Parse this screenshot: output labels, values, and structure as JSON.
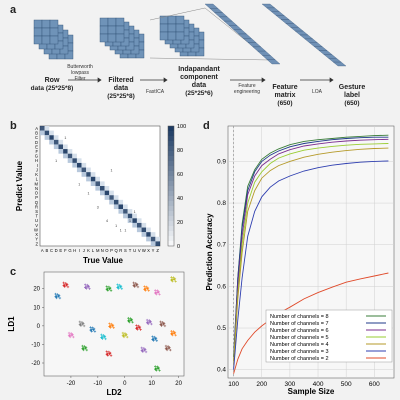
{
  "panels": {
    "a": "a",
    "b": "b",
    "c": "c",
    "d": "d"
  },
  "diagram": {
    "nodes": [
      {
        "label": "Row",
        "sub": "data (25*25*8)"
      },
      {
        "label": "Filtered",
        "label2": "data",
        "sub": "(25*25*8)"
      },
      {
        "label": "Indapandant",
        "label2": "component",
        "label3": "data",
        "sub": "(25*25*6)"
      },
      {
        "label": "Feature",
        "label2": "matrix",
        "sub": "(650)"
      },
      {
        "label": "Gesture",
        "label2": "label",
        "sub": "(650)"
      }
    ],
    "steps": [
      [
        "Butterworth",
        "lowpass",
        "Filter"
      ],
      "FastICA",
      [
        "Feature",
        "engineering"
      ],
      "LOA"
    ],
    "colors": {
      "stack_fill": "#6f93b8",
      "stack_edge": "#2f4f73",
      "band": "#6f90b5"
    }
  },
  "confusion": {
    "xlabel": "True Value",
    "ylabel": "Predict Value",
    "labels": [
      "A",
      "B",
      "C",
      "D",
      "E",
      "F",
      "G",
      "H",
      "I",
      "J",
      "K",
      "L",
      "M",
      "N",
      "O",
      "P",
      "Q",
      "R",
      "S",
      "T",
      "U",
      "V",
      "W",
      "X",
      "Y",
      "Z"
    ],
    "colorbar_ticks": [
      "0",
      "20",
      "40",
      "60",
      "80",
      "100"
    ],
    "off_diagonal_labels": [
      "1",
      "1",
      "1",
      "3",
      "4",
      "1",
      "1",
      "1",
      "1",
      "1",
      "1",
      "1"
    ],
    "colors": {
      "low": "#ffffff",
      "high": "#1d3b63"
    }
  },
  "scatter": {
    "xlabel": "LD2",
    "ylabel": "LD1",
    "xticks": [
      "-20",
      "-10",
      "0",
      "10",
      "20"
    ],
    "yticks": [
      "20",
      "10",
      "0",
      "-10",
      "-20"
    ],
    "clusters": [
      {
        "x": -22,
        "y": 22,
        "color": "#d62728"
      },
      {
        "x": -25,
        "y": 16,
        "color": "#1f77b4"
      },
      {
        "x": -14,
        "y": 21,
        "color": "#9467bd"
      },
      {
        "x": -6,
        "y": 20,
        "color": "#2ca02c"
      },
      {
        "x": -2,
        "y": 21,
        "color": "#17becf"
      },
      {
        "x": 4,
        "y": 22,
        "color": "#8c564b"
      },
      {
        "x": 8,
        "y": 20,
        "color": "#ff7f0e"
      },
      {
        "x": 12,
        "y": 18,
        "color": "#e377c2"
      },
      {
        "x": 18,
        "y": 25,
        "color": "#bcbd22"
      },
      {
        "x": -16,
        "y": 1,
        "color": "#7f7f7f"
      },
      {
        "x": -12,
        "y": -2,
        "color": "#1f77b4"
      },
      {
        "x": -5,
        "y": 0,
        "color": "#ff7f0e"
      },
      {
        "x": 2,
        "y": 3,
        "color": "#2ca02c"
      },
      {
        "x": 5,
        "y": -1,
        "color": "#d62728"
      },
      {
        "x": 9,
        "y": 2,
        "color": "#9467bd"
      },
      {
        "x": 14,
        "y": 1,
        "color": "#8c564b"
      },
      {
        "x": -20,
        "y": -5,
        "color": "#e377c2"
      },
      {
        "x": -8,
        "y": -6,
        "color": "#17becf"
      },
      {
        "x": 0,
        "y": -5,
        "color": "#bcbd22"
      },
      {
        "x": 11,
        "y": -7,
        "color": "#1f77b4"
      },
      {
        "x": 18,
        "y": -4,
        "color": "#ff7f0e"
      },
      {
        "x": -15,
        "y": -12,
        "color": "#2ca02c"
      },
      {
        "x": -6,
        "y": -15,
        "color": "#d62728"
      },
      {
        "x": 7,
        "y": -13,
        "color": "#9467bd"
      },
      {
        "x": 16,
        "y": -12,
        "color": "#8c564b"
      },
      {
        "x": 12,
        "y": -23,
        "color": "#2ca02c"
      }
    ]
  },
  "chart_data": {
    "type": "line",
    "title": "",
    "xlabel": "Sample Size",
    "ylabel": "Prediction Accuracy",
    "xlim": [
      80,
      670
    ],
    "ylim": [
      0.38,
      0.985
    ],
    "xticks": [
      100,
      200,
      300,
      400,
      500,
      600
    ],
    "yticks": [
      0.4,
      0.5,
      0.6,
      0.7,
      0.8,
      0.9
    ],
    "legend_position": "bottom-right",
    "x": [
      100,
      115,
      130,
      150,
      175,
      200,
      230,
      260,
      300,
      350,
      400,
      450,
      500,
      550,
      600,
      650
    ],
    "series": [
      {
        "name": "Number of channels = 8",
        "color": "#3a7d3a",
        "values": [
          0.43,
          0.62,
          0.75,
          0.84,
          0.88,
          0.905,
          0.92,
          0.93,
          0.94,
          0.948,
          0.952,
          0.955,
          0.958,
          0.96,
          0.962,
          0.963
        ]
      },
      {
        "name": "Number of channels = 7",
        "color": "#1f3a8a",
        "values": [
          0.43,
          0.62,
          0.74,
          0.83,
          0.875,
          0.9,
          0.915,
          0.925,
          0.935,
          0.943,
          0.948,
          0.952,
          0.955,
          0.957,
          0.958,
          0.958
        ]
      },
      {
        "name": "Number of channels = 6",
        "color": "#7b2d8e",
        "values": [
          0.42,
          0.6,
          0.72,
          0.82,
          0.865,
          0.89,
          0.905,
          0.918,
          0.928,
          0.937,
          0.942,
          0.946,
          0.949,
          0.951,
          0.952,
          0.953
        ]
      },
      {
        "name": "Number of channels = 5",
        "color": "#9acd32",
        "values": [
          0.42,
          0.58,
          0.7,
          0.8,
          0.85,
          0.875,
          0.895,
          0.908,
          0.918,
          0.927,
          0.932,
          0.936,
          0.939,
          0.941,
          0.942,
          0.943
        ]
      },
      {
        "name": "Number of channels = 4",
        "color": "#b59a2a",
        "values": [
          0.41,
          0.57,
          0.68,
          0.78,
          0.83,
          0.86,
          0.878,
          0.89,
          0.9,
          0.91,
          0.917,
          0.922,
          0.926,
          0.929,
          0.931,
          0.932
        ]
      },
      {
        "name": "Number of channels = 3",
        "color": "#2f3fb0",
        "values": [
          0.4,
          0.52,
          0.62,
          0.72,
          0.78,
          0.815,
          0.838,
          0.853,
          0.865,
          0.877,
          0.885,
          0.891,
          0.895,
          0.898,
          0.9,
          0.901
        ]
      },
      {
        "name": "Number of channels = 2",
        "color": "#e04a2a",
        "values": [
          0.39,
          0.425,
          0.45,
          0.47,
          0.49,
          0.505,
          0.52,
          0.535,
          0.55,
          0.57,
          0.585,
          0.598,
          0.61,
          0.618,
          0.625,
          0.632
        ]
      }
    ]
  }
}
